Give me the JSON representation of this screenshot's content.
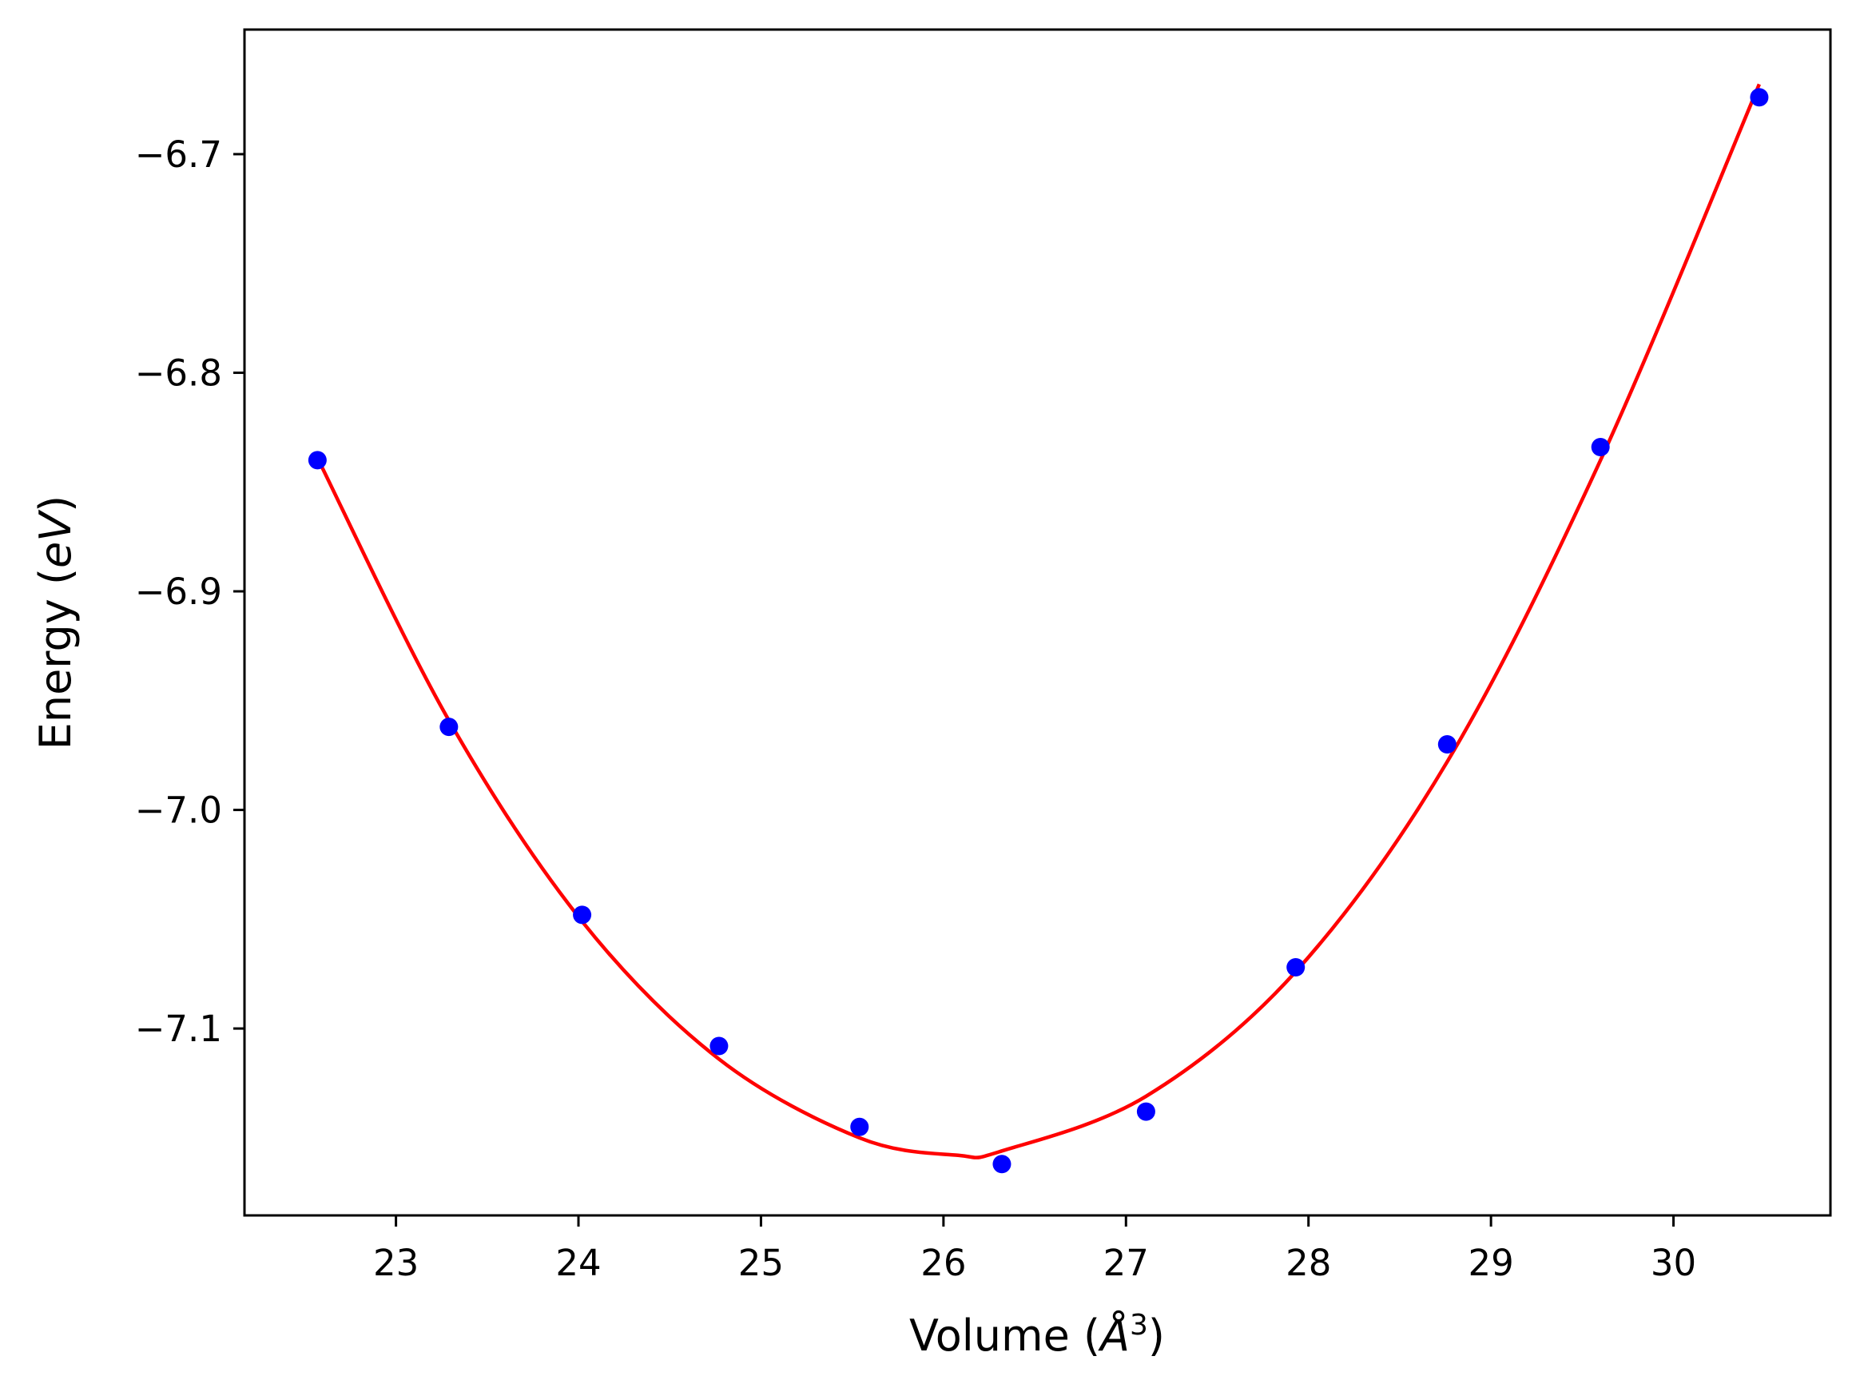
{
  "chart_data": {
    "type": "scatter",
    "title": "",
    "xlabel": {
      "prefix": "Volume (",
      "symbol": "Å",
      "exponent": "3",
      "suffix": ")"
    },
    "ylabel": {
      "prefix": "Energy (",
      "unit": "eV",
      "suffix": ")"
    },
    "xlim": [
      22.17,
      30.86
    ],
    "ylim": [
      -7.1855,
      -6.643
    ],
    "x_ticks": [
      23,
      24,
      25,
      26,
      27,
      28,
      29,
      30
    ],
    "x_tick_labels": [
      "23",
      "24",
      "25",
      "26",
      "27",
      "28",
      "29",
      "30"
    ],
    "y_ticks": [
      -6.7,
      -6.8,
      -6.9,
      -7.0,
      -7.1
    ],
    "y_tick_labels": [
      "−6.7",
      "−6.8",
      "−6.9",
      "−7.0",
      "−7.1"
    ],
    "grid": false,
    "legend": "none",
    "series": [
      {
        "kind": "points",
        "color": "#0000ff",
        "x": [
          22.57,
          23.29,
          24.02,
          24.77,
          25.54,
          26.32,
          27.11,
          27.93,
          28.76,
          29.6,
          30.47
        ],
        "y": [
          -6.84,
          -6.962,
          -7.048,
          -7.108,
          -7.145,
          -7.162,
          -7.138,
          -7.072,
          -6.97,
          -6.834,
          -6.674
        ]
      },
      {
        "kind": "fit-curve",
        "color": "#ff0000",
        "x": [
          22.57,
          23.29,
          24.02,
          24.77,
          25.54,
          26.08,
          26.32,
          27.11,
          27.93,
          28.76,
          29.6,
          30.47
        ],
        "y": [
          -6.839,
          -6.959,
          -7.051,
          -7.114,
          -7.15,
          -7.158,
          -7.156,
          -7.131,
          -7.074,
          -6.978,
          -6.84,
          -6.668
        ]
      }
    ]
  }
}
